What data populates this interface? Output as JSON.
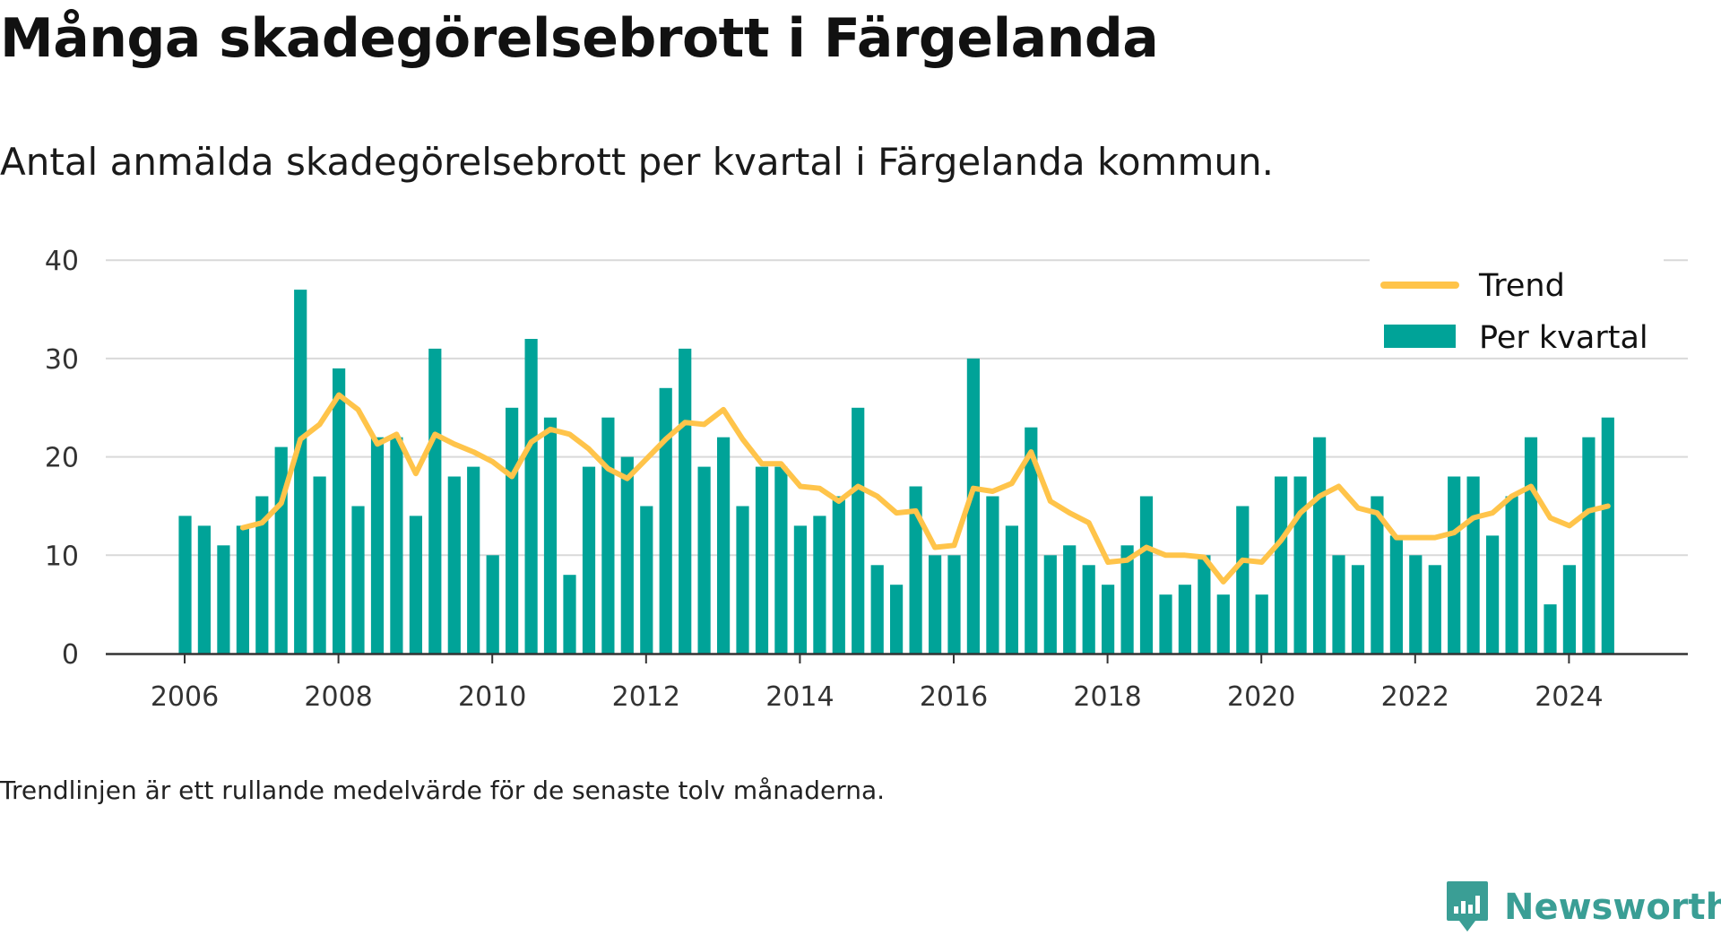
{
  "header": {
    "title": "Många skadegörelsebrott i Färgelanda",
    "subtitle": "Antal anmälda skadegörelsebrott per kvartal i Färgelanda kommun."
  },
  "footnote": "Trendlinjen är ett rullande medelvärde för de senaste tolv månaderna.",
  "brand": {
    "name": "Newsworthy",
    "icon": "newsworthy-logo-icon",
    "color": "#3a9e95"
  },
  "colors": {
    "bars": "#00a398",
    "trend": "#ffc44a",
    "grid": "#d9d9d9",
    "axis": "#333333"
  },
  "chart_data": {
    "type": "bar",
    "x_start_year": 2006,
    "periods_per_year": 4,
    "x_ticks": [
      2006,
      2008,
      2010,
      2012,
      2014,
      2016,
      2018,
      2020,
      2022,
      2024
    ],
    "ylim": [
      0,
      40
    ],
    "y_ticks": [
      0,
      10,
      20,
      30,
      40
    ],
    "grid": true,
    "legend_position": "top-right",
    "series": [
      {
        "name": "Per kvartal",
        "type": "bar",
        "values": [
          14,
          13,
          11,
          13,
          16,
          21,
          37,
          18,
          29,
          15,
          22,
          22,
          14,
          31,
          18,
          19,
          10,
          25,
          32,
          24,
          8,
          19,
          24,
          20,
          15,
          27,
          31,
          19,
          22,
          15,
          19,
          19,
          13,
          14,
          16,
          25,
          9,
          7,
          17,
          10,
          10,
          30,
          16,
          13,
          23,
          10,
          11,
          9,
          7,
          11,
          16,
          6,
          7,
          10,
          6,
          15,
          6,
          18,
          18,
          22,
          10,
          9,
          16,
          12,
          10,
          9,
          18,
          18,
          12,
          16,
          22,
          5,
          9,
          22,
          24
        ]
      },
      {
        "name": "Trend",
        "type": "line",
        "start_index": 3,
        "values": [
          12.8,
          13.3,
          15.3,
          21.8,
          23.3,
          26.3,
          24.8,
          21.3,
          22.3,
          18.3,
          22.3,
          21.3,
          20.5,
          19.5,
          18.0,
          21.5,
          22.8,
          22.3,
          20.8,
          18.8,
          17.8,
          19.8,
          21.8,
          23.5,
          23.3,
          24.8,
          21.8,
          19.3,
          19.3,
          17.0,
          16.8,
          15.5,
          17.0,
          16.0,
          14.3,
          14.5,
          10.8,
          11.0,
          16.8,
          16.5,
          17.3,
          20.5,
          15.5,
          14.3,
          13.3,
          9.3,
          9.5,
          10.8,
          10.0,
          10.0,
          9.8,
          7.3,
          9.5,
          9.3,
          11.5,
          14.3,
          16.0,
          17.0,
          14.8,
          14.3,
          11.8,
          11.8,
          11.8,
          12.3,
          13.8,
          14.3,
          16.0,
          17.0,
          13.8,
          13.0,
          14.5,
          15.0
        ]
      }
    ]
  }
}
